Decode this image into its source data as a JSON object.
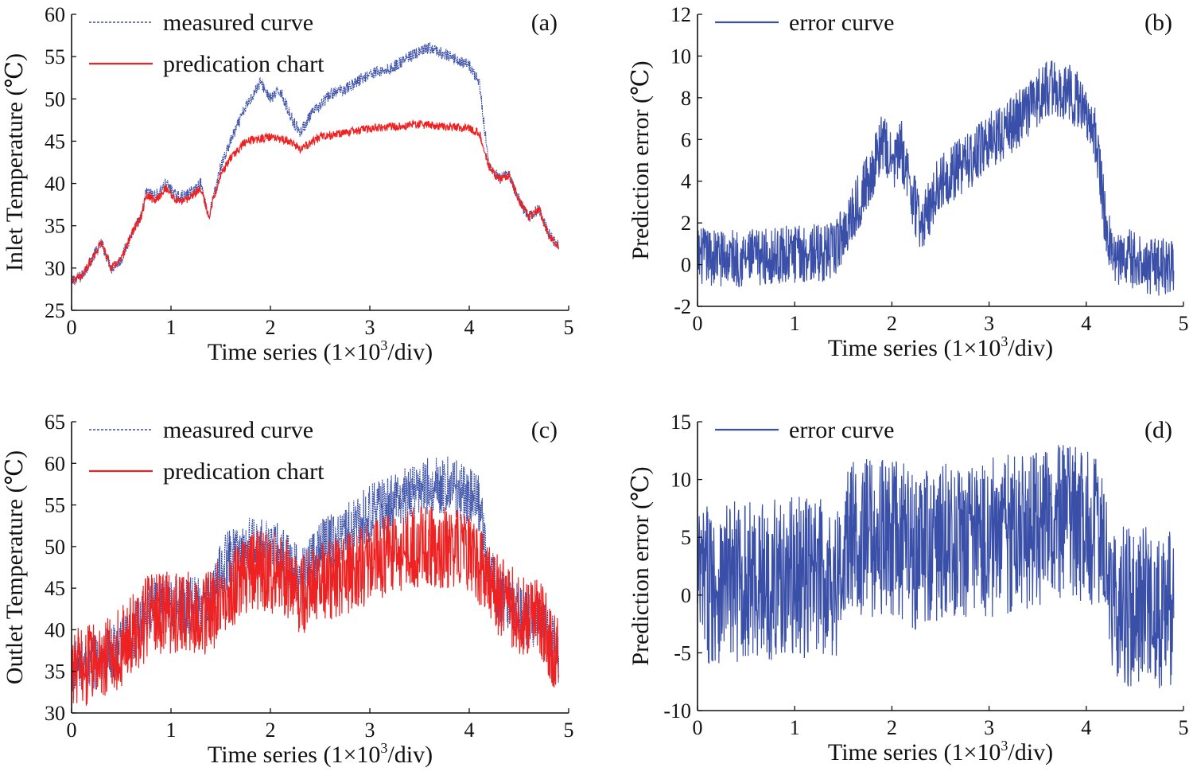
{
  "figure": {
    "colors": {
      "measured": "#3a4fa8",
      "prediction": "#ee2222",
      "error": "#3a4fa8",
      "axis": "#111111"
    }
  },
  "chart_data": [
    {
      "id": "a",
      "type": "line",
      "panel_label": "(a)",
      "xlabel": "Time  series (1×10³/div)",
      "xlabel_pre": "Time  series (1×10",
      "xlabel_sup": "3",
      "xlabel_post": "/div)",
      "ylabel": "Inlet Temperature (℃)",
      "xlim": [
        0,
        5
      ],
      "ylim": [
        25,
        60
      ],
      "xticks": [
        0,
        1,
        2,
        3,
        4,
        5
      ],
      "yticks": [
        25,
        30,
        35,
        40,
        45,
        50,
        55,
        60
      ],
      "legend": [
        "measured curve",
        "predication chart"
      ],
      "series": [
        {
          "name": "measured curve",
          "style": "dotted",
          "color": "#3a4fa8",
          "noise": 0.7,
          "x": [
            0,
            0.1,
            0.2,
            0.3,
            0.4,
            0.5,
            0.6,
            0.7,
            0.75,
            0.85,
            0.95,
            1.05,
            1.15,
            1.3,
            1.38,
            1.42,
            1.5,
            1.6,
            1.75,
            1.9,
            2.0,
            2.1,
            2.2,
            2.3,
            2.4,
            2.6,
            2.8,
            3.0,
            3.2,
            3.4,
            3.6,
            3.8,
            4.0,
            4.1,
            4.2,
            4.3,
            4.4,
            4.5,
            4.6,
            4.7,
            4.8,
            4.9
          ],
          "y": [
            28.5,
            29,
            31,
            33,
            30,
            31,
            34,
            36,
            39,
            38.5,
            40,
            38.5,
            38.5,
            40,
            36,
            38,
            42,
            45,
            49,
            52,
            50,
            51,
            48,
            46,
            48,
            50.5,
            51.5,
            53,
            53.5,
            55,
            56,
            55,
            54,
            52,
            42,
            40.5,
            41,
            38,
            36,
            37,
            34,
            32.5
          ]
        },
        {
          "name": "predication chart",
          "style": "solid",
          "color": "#ee2222",
          "noise": 0.5,
          "x": [
            0,
            0.1,
            0.2,
            0.3,
            0.4,
            0.5,
            0.6,
            0.7,
            0.75,
            0.85,
            0.95,
            1.05,
            1.15,
            1.3,
            1.38,
            1.42,
            1.5,
            1.6,
            1.75,
            2.0,
            2.2,
            2.3,
            2.5,
            3.0,
            3.5,
            4.0,
            4.1,
            4.2,
            4.3,
            4.4,
            4.5,
            4.6,
            4.7,
            4.8,
            4.9
          ],
          "y": [
            28.5,
            29,
            31,
            33,
            30,
            31,
            34,
            36,
            38.5,
            38,
            39.5,
            38,
            38,
            39.5,
            36,
            38,
            41,
            43,
            45,
            45.5,
            45,
            44,
            45.5,
            46.5,
            47,
            46.5,
            46,
            42,
            40.5,
            41,
            38,
            36,
            37,
            34,
            32.5
          ]
        }
      ]
    },
    {
      "id": "b",
      "type": "line",
      "panel_label": "(b)",
      "xlabel": "Time  series (1×10³/div)",
      "xlabel_pre": "Time  series (1×10",
      "xlabel_sup": "3",
      "xlabel_post": "/div)",
      "ylabel": "Prediction error (℃)",
      "xlim": [
        0,
        5
      ],
      "ylim": [
        -2,
        12
      ],
      "xticks": [
        0,
        1,
        2,
        3,
        4,
        5
      ],
      "yticks": [
        -2,
        0,
        2,
        4,
        6,
        8,
        10,
        12
      ],
      "legend": [
        "error curve"
      ],
      "series": [
        {
          "name": "error curve",
          "style": "solid",
          "color": "#3a4fa8",
          "noise": 1.4,
          "x": [
            0,
            0.5,
            1.0,
            1.4,
            1.6,
            1.8,
            1.9,
            2.0,
            2.1,
            2.2,
            2.3,
            2.5,
            2.8,
            3.0,
            3.2,
            3.4,
            3.6,
            3.8,
            4.0,
            4.1,
            4.2,
            4.3,
            4.4,
            4.6,
            4.9
          ],
          "y": [
            0.4,
            0.3,
            0.5,
            0.6,
            2.5,
            4.5,
            6,
            4.8,
            5.5,
            3.5,
            1.8,
            4,
            5,
            6,
            6.5,
            7.5,
            8.5,
            8.3,
            7.5,
            6,
            2,
            0,
            0.4,
            0,
            -0.2
          ]
        }
      ]
    },
    {
      "id": "c",
      "type": "line",
      "panel_label": "(c)",
      "xlabel": "Time  series (1×10³/div)",
      "xlabel_pre": "Time  series (1×10",
      "xlabel_sup": "3",
      "xlabel_post": "/div)",
      "ylabel": "Outlet Temperature (℃)",
      "xlim": [
        0,
        5
      ],
      "ylim": [
        30,
        65
      ],
      "xticks": [
        0,
        1,
        2,
        3,
        4,
        5
      ],
      "yticks": [
        30,
        35,
        40,
        45,
        50,
        55,
        60,
        65
      ],
      "legend": [
        "measured curve",
        "predication chart"
      ],
      "series": [
        {
          "name": "measured curve",
          "style": "dotted",
          "color": "#3a4fa8",
          "noise": 3.5,
          "x": [
            0,
            0.2,
            0.4,
            0.6,
            0.8,
            1.0,
            1.2,
            1.4,
            1.5,
            1.6,
            1.8,
            2.0,
            2.2,
            2.3,
            2.5,
            2.8,
            3.0,
            3.2,
            3.5,
            3.8,
            4.0,
            4.1,
            4.2,
            4.3,
            4.5,
            4.7,
            4.9
          ],
          "y": [
            35,
            36,
            37,
            39,
            43,
            43,
            43,
            43,
            47,
            49,
            50,
            50,
            48,
            46,
            50,
            52,
            54,
            55,
            57,
            57.5,
            56,
            55,
            47,
            44,
            42,
            41,
            37
          ]
        },
        {
          "name": "predication chart",
          "style": "solid",
          "color": "#ee2222",
          "noise": 5,
          "x": [
            0,
            0.2,
            0.4,
            0.6,
            0.8,
            1.0,
            1.2,
            1.4,
            1.5,
            1.6,
            1.8,
            2.0,
            2.2,
            2.3,
            2.5,
            2.8,
            3.0,
            3.2,
            3.5,
            3.8,
            4.0,
            4.1,
            4.2,
            4.3,
            4.5,
            4.7,
            4.9
          ],
          "y": [
            35,
            36,
            37,
            39,
            42,
            42,
            42,
            42,
            44,
            45,
            47,
            47,
            46,
            44,
            45.5,
            47,
            48,
            49,
            50,
            50,
            49.5,
            48,
            45,
            44,
            42,
            41,
            37
          ]
        }
      ]
    },
    {
      "id": "d",
      "type": "line",
      "panel_label": "(d)",
      "xlabel": "Time  series (1×10³/div)",
      "xlabel_pre": "Time  series (1×10",
      "xlabel_sup": "3",
      "xlabel_post": "/div)",
      "ylabel": "Prediction error (℃)",
      "xlim": [
        0,
        5
      ],
      "ylim": [
        -10,
        15
      ],
      "xticks": [
        0,
        1,
        2,
        3,
        4,
        5
      ],
      "yticks": [
        -10,
        -5,
        0,
        5,
        10,
        15
      ],
      "legend": [
        "error curve"
      ],
      "series": [
        {
          "name": "error curve",
          "style": "solid",
          "color": "#3a4fa8",
          "noise": 7,
          "x": [
            0,
            0.5,
            1.0,
            1.5,
            1.55,
            1.8,
            2.0,
            2.2,
            2.3,
            2.6,
            3.0,
            3.5,
            4.0,
            4.2,
            4.3,
            4.6,
            4.9
          ],
          "y": [
            1,
            1.2,
            1.5,
            1.5,
            5,
            5,
            5,
            4,
            4,
            4.5,
            5,
            6,
            6,
            4.5,
            -1,
            -1,
            -1.5
          ]
        }
      ]
    }
  ]
}
